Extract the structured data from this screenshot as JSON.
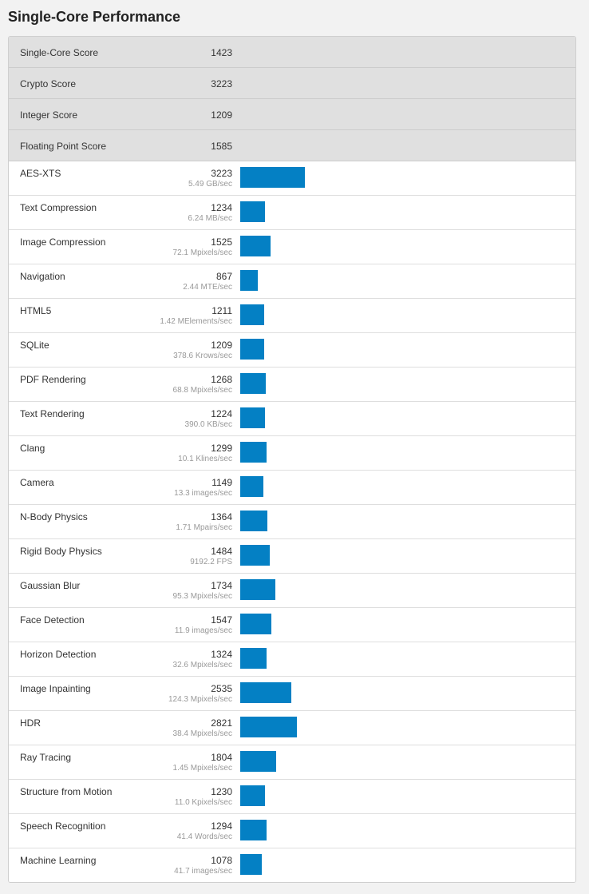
{
  "title": "Single-Core Performance",
  "colors": {
    "bar": "#0480c4",
    "summary_bg": "#e0e0e0"
  },
  "summary": [
    {
      "label": "Single-Core Score",
      "value": "1423"
    },
    {
      "label": "Crypto Score",
      "value": "3223"
    },
    {
      "label": "Integer Score",
      "value": "1209"
    },
    {
      "label": "Floating Point Score",
      "value": "1585"
    }
  ],
  "benchmarks": [
    {
      "name": "AES-XTS",
      "score": 3223,
      "desc": "5.49 GB/sec"
    },
    {
      "name": "Text Compression",
      "score": 1234,
      "desc": "6.24 MB/sec"
    },
    {
      "name": "Image Compression",
      "score": 1525,
      "desc": "72.1 Mpixels/sec"
    },
    {
      "name": "Navigation",
      "score": 867,
      "desc": "2.44 MTE/sec"
    },
    {
      "name": "HTML5",
      "score": 1211,
      "desc": "1.42 MElements/sec"
    },
    {
      "name": "SQLite",
      "score": 1209,
      "desc": "378.6 Krows/sec"
    },
    {
      "name": "PDF Rendering",
      "score": 1268,
      "desc": "68.8 Mpixels/sec"
    },
    {
      "name": "Text Rendering",
      "score": 1224,
      "desc": "390.0 KB/sec"
    },
    {
      "name": "Clang",
      "score": 1299,
      "desc": "10.1 Klines/sec"
    },
    {
      "name": "Camera",
      "score": 1149,
      "desc": "13.3 images/sec"
    },
    {
      "name": "N-Body Physics",
      "score": 1364,
      "desc": "1.71 Mpairs/sec"
    },
    {
      "name": "Rigid Body Physics",
      "score": 1484,
      "desc": "9192.2 FPS"
    },
    {
      "name": "Gaussian Blur",
      "score": 1734,
      "desc": "95.3 Mpixels/sec"
    },
    {
      "name": "Face Detection",
      "score": 1547,
      "desc": "11.9 images/sec"
    },
    {
      "name": "Horizon Detection",
      "score": 1324,
      "desc": "32.6 Mpixels/sec"
    },
    {
      "name": "Image Inpainting",
      "score": 2535,
      "desc": "124.3 Mpixels/sec"
    },
    {
      "name": "HDR",
      "score": 2821,
      "desc": "38.4 Mpixels/sec"
    },
    {
      "name": "Ray Tracing",
      "score": 1804,
      "desc": "1.45 Mpixels/sec"
    },
    {
      "name": "Structure from Motion",
      "score": 1230,
      "desc": "11.0 Kpixels/sec"
    },
    {
      "name": "Speech Recognition",
      "score": 1294,
      "desc": "41.4 Words/sec"
    },
    {
      "name": "Machine Learning",
      "score": 1078,
      "desc": "41.7 images/sec"
    }
  ]
}
